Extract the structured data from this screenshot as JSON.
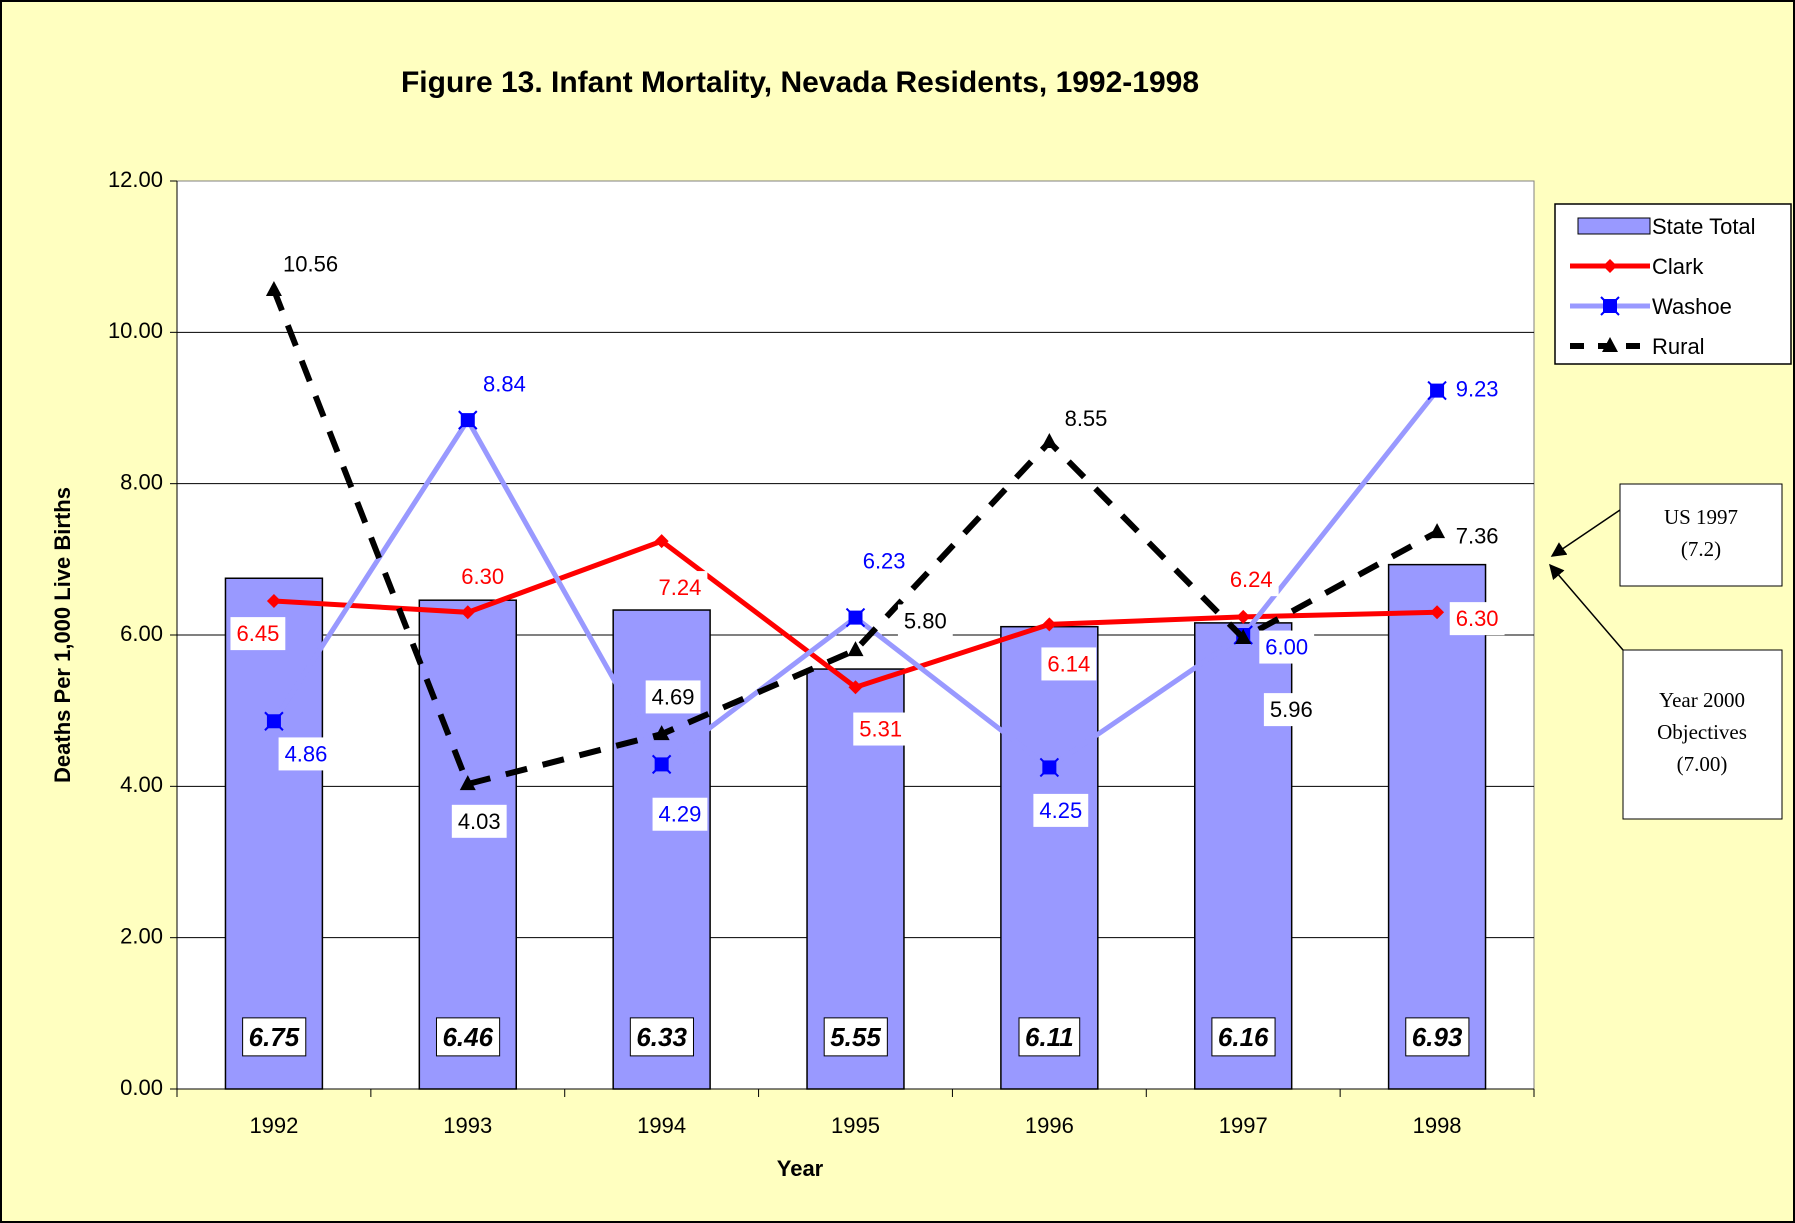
{
  "chart_data": {
    "type": "bar",
    "title": "Figure 13. Infant Mortality, Nevada Residents, 1992-1998",
    "x_label": "Year",
    "y_label": "Deaths Per 1,000 Live Births",
    "categories": [
      "1992",
      "1993",
      "1994",
      "1995",
      "1996",
      "1997",
      "1998"
    ],
    "series": [
      {
        "name": "State Total",
        "type": "bar",
        "color": "#9999ff",
        "label_color": "#000000",
        "values": [
          6.75,
          6.46,
          6.33,
          5.55,
          6.11,
          6.16,
          6.93
        ],
        "value_labels": [
          "6.75",
          "6.46",
          "6.33",
          "5.55",
          "6.11",
          "6.16",
          "6.93"
        ]
      },
      {
        "name": "Clark",
        "type": "line",
        "color": "#ff0000",
        "marker": "diamond",
        "marker_color": "#ff0000",
        "label_color": "#ff0000",
        "values": [
          6.45,
          6.3,
          7.24,
          5.31,
          6.14,
          6.24,
          6.3
        ],
        "value_labels": [
          "6.45",
          "6.30",
          "7.24",
          "5.31",
          "6.14",
          "6.24",
          "6.30"
        ]
      },
      {
        "name": "Washoe",
        "type": "line",
        "color": "#9999ff",
        "marker": "square",
        "marker_color": "#0000ff",
        "label_color": "#0000ff",
        "values": [
          4.86,
          8.84,
          4.29,
          6.23,
          4.25,
          6.0,
          9.23
        ],
        "value_labels": [
          "4.86",
          "8.84",
          "4.29",
          "6.23",
          "4.25",
          "6.00",
          "9.23"
        ]
      },
      {
        "name": "Rural",
        "type": "line",
        "color": "#000000",
        "dashed": true,
        "marker": "triangle",
        "marker_color": "#000000",
        "label_color": "#000000",
        "values": [
          10.56,
          4.03,
          4.69,
          5.8,
          8.55,
          5.96,
          7.36
        ],
        "value_labels": [
          "10.56",
          "4.03",
          "4.69",
          "5.80",
          "8.55",
          "5.96",
          "7.36"
        ]
      }
    ],
    "ylim": [
      0,
      12
    ],
    "yticks": [
      {
        "value": 0,
        "label": "0.00"
      },
      {
        "value": 2,
        "label": "2.00"
      },
      {
        "value": 4,
        "label": "4.00"
      },
      {
        "value": 6,
        "label": "6.00"
      },
      {
        "value": 8,
        "label": "8.00"
      },
      {
        "value": 10,
        "label": "10.00"
      },
      {
        "value": 12,
        "label": "12.00"
      }
    ],
    "grid": true,
    "legend": "right",
    "annotations": [
      {
        "lines": [
          "US 1997",
          "(7.2)"
        ]
      },
      {
        "lines": [
          "Year 2000",
          "Objectives",
          "(7.00)"
        ]
      }
    ]
  }
}
